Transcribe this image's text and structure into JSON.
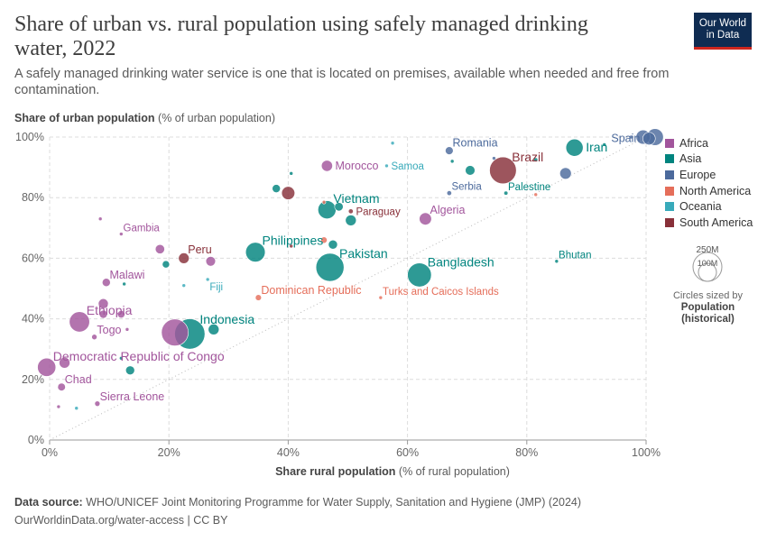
{
  "header": {
    "title": "Share of urban vs. rural population using safely managed drinking water, 2022",
    "subtitle": "A safely managed drinking water service is one that is located on premises, available when needed and free from contamination.",
    "logo_line1": "Our World",
    "logo_line2": "in Data"
  },
  "axes": {
    "y_title_bold": "Share of urban population",
    "y_title_rest": " (% of urban population)",
    "x_title_bold": "Share rural population",
    "x_title_rest": " (% of rural population)"
  },
  "legend": {
    "items": [
      {
        "label": "Africa",
        "color": "#a2559c"
      },
      {
        "label": "Asia",
        "color": "#00847e"
      },
      {
        "label": "Europe",
        "color": "#4c6a9c"
      },
      {
        "label": "North America",
        "color": "#e56e5a"
      },
      {
        "label": "Oceania",
        "color": "#38aaba"
      },
      {
        "label": "South America",
        "color": "#883039"
      }
    ],
    "size_big": "250M",
    "size_small": "100M",
    "size_note_line": "Circles sized by",
    "size_note_bold": "Population (historical)"
  },
  "footer": {
    "source_label": "Data source:",
    "source_text": " WHO/UNICEF Joint Monitoring Programme for Water Supply, Sanitation and Hygiene (JMP) (2024)",
    "url_text": "OurWorldinData.org/water-access | CC BY"
  },
  "chart_data": {
    "type": "scatter",
    "title": "Share of urban vs. rural population using safely managed drinking water, 2022",
    "xlabel": "Share rural population (% of rural population)",
    "ylabel": "Share of urban population (% of urban population)",
    "xlim": [
      0,
      100
    ],
    "ylim": [
      0,
      100
    ],
    "xticks": [
      "0%",
      "20%",
      "40%",
      "60%",
      "80%",
      "100%"
    ],
    "yticks": [
      "0%",
      "20%",
      "40%",
      "60%",
      "80%",
      "100%"
    ],
    "xtick_values": [
      0,
      20,
      40,
      60,
      80,
      100
    ],
    "ytick_values": [
      0,
      20,
      40,
      60,
      80,
      100
    ],
    "grid": true,
    "reference_line": "y = x (dotted)",
    "region_colors": {
      "Africa": "#a2559c",
      "Asia": "#00847e",
      "Europe": "#4c6a9c",
      "North America": "#e56e5a",
      "Oceania": "#38aaba",
      "South America": "#883039"
    },
    "points": [
      {
        "label": "Morocco",
        "region": "Africa",
        "x": 46.5,
        "y": 90.5,
        "pop": 37,
        "label_pos": "right"
      },
      {
        "label": "Romania",
        "region": "Europe",
        "x": 67,
        "y": 95.5,
        "pop": 19,
        "label_pos": "topright"
      },
      {
        "label": "Samoa",
        "region": "Oceania",
        "x": 56.5,
        "y": 90.5,
        "pop": 0.2,
        "label_pos": "right"
      },
      {
        "label": "Brazil",
        "region": "South America",
        "x": 76,
        "y": 89,
        "pop": 215,
        "label_pos": "topright"
      },
      {
        "label": "Iran",
        "region": "Asia",
        "x": 88,
        "y": 96.5,
        "pop": 89,
        "label_pos": "right"
      },
      {
        "label": "Spain",
        "region": "Europe",
        "x": 100.5,
        "y": 99.5,
        "pop": 47,
        "label_pos": "left"
      },
      {
        "label": "Serbia",
        "region": "Europe",
        "x": 67,
        "y": 81.5,
        "pop": 7,
        "label_pos": "topright"
      },
      {
        "label": "Palestine",
        "region": "Asia",
        "x": 76.5,
        "y": 81.5,
        "pop": 5,
        "label_pos": "topright"
      },
      {
        "label": "Vietnam",
        "region": "Asia",
        "x": 46.5,
        "y": 76,
        "pop": 98,
        "label_pos": "topright"
      },
      {
        "label": "Paraguay",
        "region": "South America",
        "x": 50.5,
        "y": 75.5,
        "pop": 7,
        "label_pos": "right"
      },
      {
        "label": "Algeria",
        "region": "Africa",
        "x": 63,
        "y": 73,
        "pop": 45,
        "label_pos": "topright"
      },
      {
        "label": "Gambia",
        "region": "Africa",
        "x": 12,
        "y": 68,
        "pop": 2.6,
        "label_pos": "topright"
      },
      {
        "label": "Peru",
        "region": "South America",
        "x": 22.5,
        "y": 60,
        "pop": 34,
        "label_pos": "topright"
      },
      {
        "label": "Philippines",
        "region": "Asia",
        "x": 34.5,
        "y": 62,
        "pop": 115,
        "label_pos": "topright"
      },
      {
        "label": "Pakistan",
        "region": "Asia",
        "x": 47,
        "y": 57,
        "pop": 236,
        "label_pos": "topright"
      },
      {
        "label": "Bangladesh",
        "region": "Asia",
        "x": 62,
        "y": 54.5,
        "pop": 171,
        "label_pos": "topright"
      },
      {
        "label": "Bhutan",
        "region": "Asia",
        "x": 85,
        "y": 59,
        "pop": 0.8,
        "label_pos": "topright"
      },
      {
        "label": "Malawi",
        "region": "Africa",
        "x": 9.5,
        "y": 52,
        "pop": 20,
        "label_pos": "topright"
      },
      {
        "label": "Fiji",
        "region": "Oceania",
        "x": 26.5,
        "y": 53,
        "pop": 0.9,
        "label_pos": "belowright"
      },
      {
        "label": "Dominican Republic",
        "region": "North America",
        "x": 35,
        "y": 47,
        "pop": 11,
        "label_pos": "topright"
      },
      {
        "label": "Turks and Caicos Islands",
        "region": "North America",
        "x": 55.5,
        "y": 47,
        "pop": 0.05,
        "label_pos": "topright"
      },
      {
        "label": "Ethiopia",
        "region": "Africa",
        "x": 5,
        "y": 39,
        "pop": 123,
        "label_pos": "topright"
      },
      {
        "label": "Indonesia",
        "region": "Asia",
        "x": 23.5,
        "y": 35,
        "pop": 275,
        "label_pos": "topright"
      },
      {
        "label": "Togo",
        "region": "Africa",
        "x": 7.5,
        "y": 34,
        "pop": 8.8,
        "label_pos": "topright"
      },
      {
        "label": "Democratic Republic of Congo",
        "region": "Africa",
        "x": -0.5,
        "y": 24,
        "pop": 100,
        "label_pos": "topright"
      },
      {
        "label": "Chad",
        "region": "Africa",
        "x": 2,
        "y": 17.5,
        "pop": 18,
        "label_pos": "topright"
      },
      {
        "label": "Sierra Leone",
        "region": "Africa",
        "x": 8,
        "y": 12,
        "pop": 8.6,
        "label_pos": "topright"
      },
      {
        "label": "",
        "region": "Africa",
        "x": 21,
        "y": 35.5,
        "pop": 216
      },
      {
        "label": "",
        "region": "Africa",
        "x": 2.5,
        "y": 25.5,
        "pop": 35
      },
      {
        "label": "",
        "region": "Africa",
        "x": 9,
        "y": 45,
        "pop": 30
      },
      {
        "label": "",
        "region": "Africa",
        "x": 9,
        "y": 41.5,
        "pop": 20
      },
      {
        "label": "",
        "region": "Africa",
        "x": 12,
        "y": 41.5,
        "pop": 17
      },
      {
        "label": "",
        "region": "Africa",
        "x": 18.5,
        "y": 63,
        "pop": 26
      },
      {
        "label": "",
        "region": "Africa",
        "x": 27,
        "y": 59,
        "pop": 28
      },
      {
        "label": "",
        "region": "Africa",
        "x": 8.5,
        "y": 73,
        "pop": 1
      },
      {
        "label": "",
        "region": "Africa",
        "x": 13,
        "y": 36.5,
        "pop": 1.5
      },
      {
        "label": "",
        "region": "Africa",
        "x": 1.5,
        "y": 11,
        "pop": 2.5
      },
      {
        "label": "",
        "region": "Asia",
        "x": 19.5,
        "y": 58,
        "pop": 16
      },
      {
        "label": "",
        "region": "Asia",
        "x": 13.5,
        "y": 23,
        "pop": 24
      },
      {
        "label": "",
        "region": "Asia",
        "x": 27.5,
        "y": 36.5,
        "pop": 35
      },
      {
        "label": "",
        "region": "Asia",
        "x": 38,
        "y": 83,
        "pop": 20
      },
      {
        "label": "",
        "region": "Asia",
        "x": 48.5,
        "y": 77,
        "pop": 22
      },
      {
        "label": "",
        "region": "Asia",
        "x": 50.5,
        "y": 72.5,
        "pop": 35
      },
      {
        "label": "",
        "region": "Asia",
        "x": 70.5,
        "y": 89,
        "pop": 28
      },
      {
        "label": "",
        "region": "Asia",
        "x": 67.5,
        "y": 92,
        "pop": 3
      },
      {
        "label": "",
        "region": "Asia",
        "x": 81.5,
        "y": 92.5,
        "pop": 5
      },
      {
        "label": "",
        "region": "Asia",
        "x": 93,
        "y": 97.5,
        "pop": 2
      },
      {
        "label": "",
        "region": "Asia",
        "x": 40.5,
        "y": 88,
        "pop": 0.5
      },
      {
        "label": "",
        "region": "Asia",
        "x": 12,
        "y": 27,
        "pop": 0.5
      },
      {
        "label": "",
        "region": "Asia",
        "x": 12.5,
        "y": 51.5,
        "pop": 0.5
      },
      {
        "label": "",
        "region": "Asia",
        "x": 47.5,
        "y": 64.5,
        "pop": 25
      },
      {
        "label": "",
        "region": "Europe",
        "x": 86.5,
        "y": 88,
        "pop": 40
      },
      {
        "label": "",
        "region": "Europe",
        "x": 99.5,
        "y": 100,
        "pop": 60
      },
      {
        "label": "",
        "region": "Europe",
        "x": 101.5,
        "y": 100,
        "pop": 84
      },
      {
        "label": "",
        "region": "Europe",
        "x": 97.5,
        "y": 100,
        "pop": 2
      },
      {
        "label": "",
        "region": "Europe",
        "x": 74.5,
        "y": 93,
        "pop": 0.5
      },
      {
        "label": "",
        "region": "South America",
        "x": 40,
        "y": 81.5,
        "pop": 52
      },
      {
        "label": "",
        "region": "South America",
        "x": 40.5,
        "y": 64,
        "pop": 1
      },
      {
        "label": "",
        "region": "North America",
        "x": 46,
        "y": 66,
        "pop": 12
      },
      {
        "label": "",
        "region": "North America",
        "x": 46,
        "y": 78.5,
        "pop": 2
      },
      {
        "label": "",
        "region": "North America",
        "x": 81.5,
        "y": 81,
        "pop": 2
      },
      {
        "label": "",
        "region": "Oceania",
        "x": 57.5,
        "y": 98,
        "pop": 0.1
      },
      {
        "label": "",
        "region": "Oceania",
        "x": 22.5,
        "y": 51,
        "pop": 0.5
      },
      {
        "label": "",
        "region": "Oceania",
        "x": 4.5,
        "y": 10.5,
        "pop": 0.5
      }
    ]
  }
}
